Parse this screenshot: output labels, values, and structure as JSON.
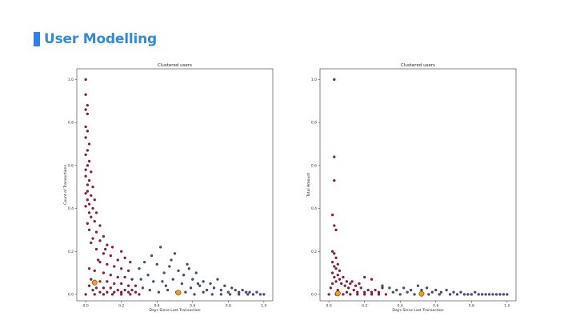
{
  "slide": {
    "title": "User Modelling",
    "accent_color": "#2f80ed",
    "title_color": "#2f8be0"
  },
  "chart_data": [
    {
      "type": "scatter",
      "title": "Clustered users",
      "xlabel": "Days Since Last Transaction",
      "ylabel": "Count of Transactions",
      "xlim": [
        -0.05,
        1.05
      ],
      "ylim": [
        -0.03,
        1.05
      ],
      "xticks": [
        "0.0",
        "0.2",
        "0.4",
        "0.6",
        "0.8",
        "1.0"
      ],
      "yticks": [
        "0.0",
        "0.2",
        "0.4",
        "0.6",
        "0.8",
        "1.0"
      ],
      "grid": false,
      "legend": "none",
      "colors": {
        "cluster_recent": "#b0103a",
        "cluster_lapsed": "#4a4f9a",
        "centroid": "#f5a000"
      },
      "series": [
        {
          "values": [
            [
              0.0,
              1.0
            ],
            [
              0.0,
              0.93
            ],
            [
              0.01,
              0.88
            ],
            [
              0.0,
              0.86
            ],
            [
              0.01,
              0.84
            ],
            [
              0.0,
              0.78
            ],
            [
              0.01,
              0.76
            ],
            [
              0.0,
              0.73
            ],
            [
              0.02,
              0.7
            ],
            [
              0.01,
              0.67
            ],
            [
              0.0,
              0.65
            ],
            [
              0.02,
              0.62
            ],
            [
              0.01,
              0.6
            ],
            [
              0.03,
              0.57
            ],
            [
              0.0,
              0.55
            ],
            [
              0.02,
              0.53
            ],
            [
              0.04,
              0.5
            ],
            [
              0.01,
              0.48
            ],
            [
              0.03,
              0.46
            ],
            [
              0.05,
              0.44
            ],
            [
              0.02,
              0.42
            ],
            [
              0.04,
              0.4
            ],
            [
              0.06,
              0.38
            ],
            [
              0.03,
              0.36
            ],
            [
              0.05,
              0.34
            ],
            [
              0.08,
              0.32
            ],
            [
              0.02,
              0.3
            ],
            [
              0.06,
              0.29
            ],
            [
              0.1,
              0.27
            ],
            [
              0.04,
              0.26
            ],
            [
              0.08,
              0.25
            ],
            [
              0.12,
              0.23
            ],
            [
              0.15,
              0.22
            ],
            [
              0.06,
              0.21
            ],
            [
              0.2,
              0.2
            ],
            [
              0.1,
              0.19
            ],
            [
              0.14,
              0.18
            ],
            [
              0.22,
              0.17
            ],
            [
              0.18,
              0.16
            ],
            [
              0.08,
              0.15
            ],
            [
              0.25,
              0.15
            ],
            [
              0.12,
              0.14
            ],
            [
              0.16,
              0.13
            ],
            [
              0.2,
              0.12
            ],
            [
              0.24,
              0.11
            ],
            [
              0.05,
              0.11
            ],
            [
              0.1,
              0.1
            ],
            [
              0.14,
              0.09
            ],
            [
              0.18,
              0.08
            ],
            [
              0.22,
              0.08
            ],
            [
              0.26,
              0.07
            ],
            [
              0.03,
              0.07
            ],
            [
              0.08,
              0.06
            ],
            [
              0.12,
              0.06
            ],
            [
              0.16,
              0.05
            ],
            [
              0.2,
              0.05
            ],
            [
              0.24,
              0.04
            ],
            [
              0.28,
              0.04
            ],
            [
              0.02,
              0.04
            ],
            [
              0.06,
              0.03
            ],
            [
              0.1,
              0.03
            ],
            [
              0.14,
              0.03
            ],
            [
              0.18,
              0.02
            ],
            [
              0.22,
              0.02
            ],
            [
              0.26,
              0.02
            ],
            [
              0.04,
              0.02
            ],
            [
              0.08,
              0.01
            ],
            [
              0.12,
              0.01
            ],
            [
              0.16,
              0.01
            ],
            [
              0.2,
              0.01
            ],
            [
              0.24,
              0.01
            ],
            [
              0.28,
              0.01
            ],
            [
              0.0,
              0.0
            ],
            [
              0.05,
              0.0
            ],
            [
              0.1,
              0.0
            ],
            [
              0.15,
              0.0
            ],
            [
              0.2,
              0.0
            ],
            [
              0.25,
              0.0
            ],
            [
              0.3,
              0.0
            ],
            [
              0.02,
              0.12
            ],
            [
              0.07,
              0.16
            ],
            [
              0.11,
              0.21
            ],
            [
              0.03,
              0.24
            ],
            [
              0.01,
              0.33
            ],
            [
              0.02,
              0.38
            ],
            [
              0.0,
              0.41
            ],
            [
              0.01,
              0.44
            ],
            [
              0.0,
              0.58
            ],
            [
              0.01,
              0.51
            ],
            [
              0.0,
              0.47
            ]
          ]
        },
        {
          "values": [
            [
              0.3,
              0.12
            ],
            [
              0.33,
              0.15
            ],
            [
              0.35,
              0.09
            ],
            [
              0.37,
              0.18
            ],
            [
              0.38,
              0.06
            ],
            [
              0.4,
              0.14
            ],
            [
              0.42,
              0.22
            ],
            [
              0.44,
              0.1
            ],
            [
              0.45,
              0.04
            ],
            [
              0.47,
              0.13
            ],
            [
              0.49,
              0.07
            ],
            [
              0.5,
              0.19
            ],
            [
              0.52,
              0.11
            ],
            [
              0.54,
              0.05
            ],
            [
              0.55,
              0.09
            ],
            [
              0.57,
              0.14
            ],
            [
              0.59,
              0.03
            ],
            [
              0.6,
              0.07
            ],
            [
              0.62,
              0.1
            ],
            [
              0.64,
              0.04
            ],
            [
              0.66,
              0.06
            ],
            [
              0.68,
              0.02
            ],
            [
              0.7,
              0.05
            ],
            [
              0.72,
              0.03
            ],
            [
              0.74,
              0.07
            ],
            [
              0.76,
              0.02
            ],
            [
              0.78,
              0.04
            ],
            [
              0.8,
              0.01
            ],
            [
              0.82,
              0.03
            ],
            [
              0.84,
              0.02
            ],
            [
              0.86,
              0.01
            ],
            [
              0.88,
              0.02
            ],
            [
              0.9,
              0.01
            ],
            [
              0.92,
              0.01
            ],
            [
              0.94,
              0.0
            ],
            [
              0.96,
              0.01
            ],
            [
              0.98,
              0.0
            ],
            [
              1.0,
              0.0
            ],
            [
              0.32,
              0.03
            ],
            [
              0.36,
              0.02
            ],
            [
              0.41,
              0.01
            ],
            [
              0.46,
              0.02
            ],
            [
              0.51,
              0.01
            ],
            [
              0.56,
              0.01
            ],
            [
              0.61,
              0.0
            ],
            [
              0.66,
              0.01
            ],
            [
              0.71,
              0.0
            ],
            [
              0.76,
              0.0
            ],
            [
              0.81,
              0.0
            ],
            [
              0.86,
              0.0
            ],
            [
              0.91,
              0.0
            ],
            [
              0.31,
              0.07
            ],
            [
              0.43,
              0.06
            ],
            [
              0.48,
              0.16
            ],
            [
              0.58,
              0.12
            ],
            [
              0.63,
              0.05
            ]
          ]
        },
        {
          "values": [
            [
              0.05,
              0.055
            ],
            [
              0.52,
              0.008
            ]
          ]
        }
      ]
    },
    {
      "type": "scatter",
      "title": "Clustered users",
      "xlabel": "Days Since Last Transaction",
      "ylabel": "Total Amount",
      "xlim": [
        -0.05,
        1.05
      ],
      "ylim": [
        -0.03,
        1.05
      ],
      "xticks": [
        "0.0",
        "0.2",
        "0.4",
        "0.6",
        "0.8",
        "1.0"
      ],
      "yticks": [
        "0.0",
        "0.2",
        "0.4",
        "0.6",
        "0.8",
        "1.0"
      ],
      "grid": false,
      "legend": "none",
      "colors": {
        "cluster_recent": "#b0103a",
        "cluster_lapsed": "#4a4f9a",
        "centroid": "#f5a000"
      },
      "series": [
        {
          "values": [
            [
              0.03,
              1.0
            ],
            [
              0.03,
              0.64
            ],
            [
              0.03,
              0.53
            ],
            [
              0.02,
              0.37
            ],
            [
              0.03,
              0.32
            ],
            [
              0.04,
              0.3
            ],
            [
              0.02,
              0.2
            ],
            [
              0.03,
              0.19
            ],
            [
              0.04,
              0.17
            ],
            [
              0.02,
              0.15
            ],
            [
              0.05,
              0.14
            ],
            [
              0.03,
              0.13
            ],
            [
              0.04,
              0.12
            ],
            [
              0.06,
              0.11
            ],
            [
              0.02,
              0.1
            ],
            [
              0.05,
              0.09
            ],
            [
              0.08,
              0.08
            ],
            [
              0.03,
              0.08
            ],
            [
              0.06,
              0.07
            ],
            [
              0.1,
              0.06
            ],
            [
              0.04,
              0.06
            ],
            [
              0.12,
              0.05
            ],
            [
              0.07,
              0.05
            ],
            [
              0.15,
              0.04
            ],
            [
              0.09,
              0.04
            ],
            [
              0.18,
              0.03
            ],
            [
              0.11,
              0.03
            ],
            [
              0.2,
              0.08
            ],
            [
              0.24,
              0.07
            ],
            [
              0.14,
              0.02
            ],
            [
              0.22,
              0.02
            ],
            [
              0.26,
              0.02
            ],
            [
              0.05,
              0.02
            ],
            [
              0.1,
              0.01
            ],
            [
              0.16,
              0.01
            ],
            [
              0.2,
              0.01
            ],
            [
              0.24,
              0.01
            ],
            [
              0.28,
              0.01
            ],
            [
              0.0,
              0.0
            ],
            [
              0.04,
              0.0
            ],
            [
              0.08,
              0.0
            ],
            [
              0.12,
              0.0
            ],
            [
              0.16,
              0.0
            ],
            [
              0.2,
              0.0
            ],
            [
              0.24,
              0.0
            ],
            [
              0.28,
              0.0
            ],
            [
              0.32,
              0.0
            ],
            [
              0.13,
              0.06
            ],
            [
              0.17,
              0.05
            ],
            [
              0.3,
              0.03
            ],
            [
              0.01,
              0.03
            ],
            [
              0.02,
              0.05
            ]
          ]
        },
        {
          "values": [
            [
              0.3,
              0.04
            ],
            [
              0.34,
              0.03
            ],
            [
              0.38,
              0.02
            ],
            [
              0.42,
              0.03
            ],
            [
              0.46,
              0.02
            ],
            [
              0.5,
              0.04
            ],
            [
              0.52,
              0.02
            ],
            [
              0.55,
              0.03
            ],
            [
              0.58,
              0.01
            ],
            [
              0.6,
              0.02
            ],
            [
              0.63,
              0.01
            ],
            [
              0.66,
              0.02
            ],
            [
              0.7,
              0.01
            ],
            [
              0.74,
              0.01
            ],
            [
              0.78,
              0.0
            ],
            [
              0.82,
              0.01
            ],
            [
              0.86,
              0.0
            ],
            [
              0.9,
              0.0
            ],
            [
              0.94,
              0.0
            ],
            [
              0.98,
              0.0
            ],
            [
              1.0,
              0.0
            ],
            [
              0.36,
              0.01
            ],
            [
              0.4,
              0.0
            ],
            [
              0.44,
              0.01
            ],
            [
              0.48,
              0.0
            ],
            [
              0.56,
              0.0
            ],
            [
              0.62,
              0.0
            ],
            [
              0.68,
              0.0
            ],
            [
              0.72,
              0.0
            ],
            [
              0.76,
              0.0
            ],
            [
              0.8,
              0.0
            ],
            [
              0.84,
              0.0
            ],
            [
              0.88,
              0.0
            ],
            [
              0.92,
              0.0
            ],
            [
              0.96,
              0.0
            ]
          ]
        },
        {
          "values": [
            [
              0.05,
              0.004
            ],
            [
              0.52,
              0.003
            ]
          ]
        }
      ]
    }
  ]
}
